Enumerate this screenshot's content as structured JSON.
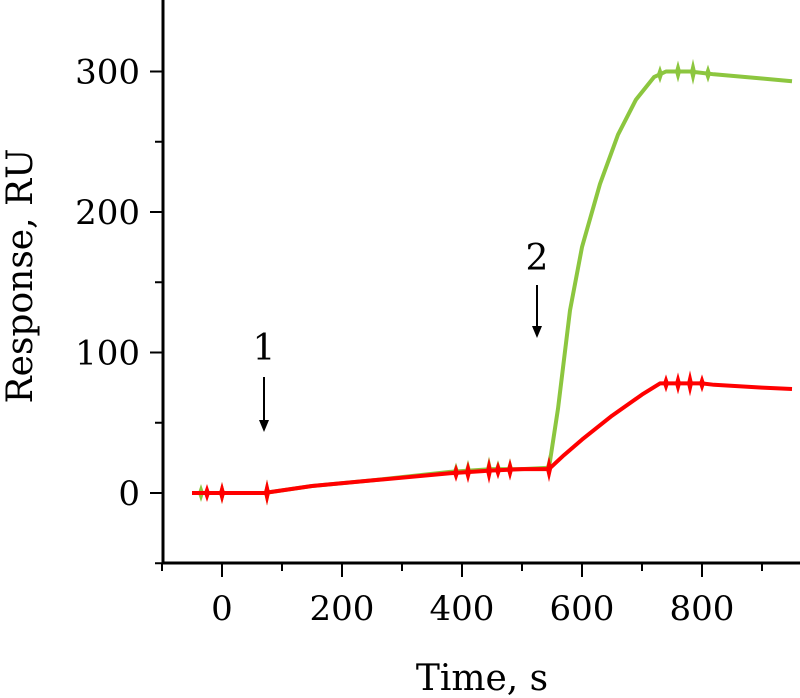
{
  "chart_data": {
    "type": "line",
    "title": "",
    "xlabel": "Time, s",
    "ylabel": "Response, RU",
    "xlim": [
      -60,
      950
    ],
    "ylim": [
      -50,
      350
    ],
    "x_ticks": [
      0,
      200,
      400,
      600,
      800
    ],
    "x_tick_labels": [
      "0",
      "200",
      "400",
      "600",
      "800"
    ],
    "y_ticks": [
      0,
      100,
      200,
      300
    ],
    "y_tick_labels": [
      "0",
      "100",
      "200",
      "300"
    ],
    "grid": false,
    "legend": "none",
    "series": [
      {
        "color": "#8cc63f",
        "points": [
          [
            -50,
            0
          ],
          [
            0,
            0
          ],
          [
            70,
            0
          ],
          [
            150,
            5
          ],
          [
            250,
            9
          ],
          [
            380,
            15
          ],
          [
            450,
            17
          ],
          [
            500,
            17
          ],
          [
            545,
            18
          ],
          [
            560,
            60
          ],
          [
            580,
            130
          ],
          [
            600,
            175
          ],
          [
            630,
            220
          ],
          [
            660,
            255
          ],
          [
            690,
            280
          ],
          [
            720,
            296
          ],
          [
            740,
            300
          ],
          [
            780,
            300
          ],
          [
            820,
            298
          ],
          [
            900,
            295
          ],
          [
            950,
            293
          ]
        ],
        "spikes_x": [
          -35,
          0,
          75,
          390,
          410,
          445,
          460,
          480,
          545,
          730,
          760,
          785,
          810
        ]
      },
      {
        "color": "#ff0000",
        "points": [
          [
            -50,
            0
          ],
          [
            0,
            0
          ],
          [
            70,
            0
          ],
          [
            150,
            5
          ],
          [
            250,
            9
          ],
          [
            380,
            14
          ],
          [
            450,
            16
          ],
          [
            500,
            17
          ],
          [
            545,
            17
          ],
          [
            570,
            27
          ],
          [
            600,
            38
          ],
          [
            650,
            55
          ],
          [
            700,
            70
          ],
          [
            730,
            78
          ],
          [
            760,
            78
          ],
          [
            800,
            78
          ],
          [
            820,
            77
          ],
          [
            900,
            75
          ],
          [
            950,
            74
          ]
        ],
        "spikes_x": [
          -25,
          0,
          75,
          390,
          410,
          445,
          460,
          480,
          545,
          740,
          760,
          780,
          800
        ]
      }
    ],
    "annotations": [
      {
        "label": "1",
        "x": 70,
        "arrow": "down"
      },
      {
        "label": "2",
        "x": 525,
        "arrow": "down"
      }
    ]
  }
}
